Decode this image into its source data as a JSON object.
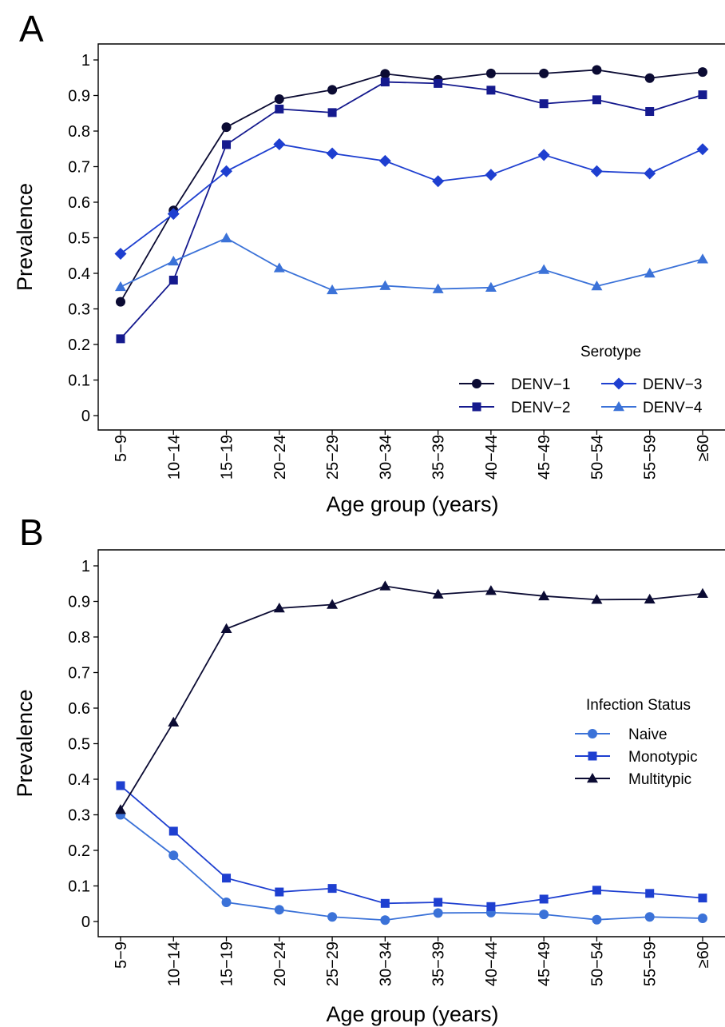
{
  "chart_data": [
    {
      "type": "line",
      "panel_label": "A",
      "xlabel": "Age group (years)",
      "ylabel": "Prevalence",
      "categories": [
        "5−9",
        "10−14",
        "15−19",
        "20−24",
        "25−29",
        "30−34",
        "35−39",
        "40−44",
        "45−49",
        "50−54",
        "55−59",
        "≥60"
      ],
      "ylim": [
        0,
        1
      ],
      "yticks": [
        "0",
        "0.1",
        "0.2",
        "0.3",
        "0.4",
        "0.5",
        "0.6",
        "0.7",
        "0.8",
        "0.9",
        "1"
      ],
      "grid": false,
      "legend": {
        "title": "Serotype",
        "position": "bottom-right",
        "columns": 2
      },
      "series": [
        {
          "name": "DENV−1",
          "color": "#0b0b33",
          "marker": "circle",
          "values": [
            0.32,
            0.577,
            0.811,
            0.89,
            0.916,
            0.961,
            0.944,
            0.962,
            0.962,
            0.972,
            0.949,
            0.966
          ]
        },
        {
          "name": "DENV−2",
          "color": "#151a8e",
          "marker": "square",
          "values": [
            0.216,
            0.381,
            0.762,
            0.862,
            0.852,
            0.938,
            0.934,
            0.915,
            0.877,
            0.888,
            0.855,
            0.902
          ]
        },
        {
          "name": "DENV−3",
          "color": "#1e3fd0",
          "marker": "diamond",
          "values": [
            0.455,
            0.567,
            0.687,
            0.763,
            0.737,
            0.716,
            0.659,
            0.677,
            0.733,
            0.687,
            0.681,
            0.749
          ]
        },
        {
          "name": "DENV−4",
          "color": "#3b72d8",
          "marker": "triangle",
          "values": [
            0.362,
            0.434,
            0.499,
            0.415,
            0.353,
            0.365,
            0.356,
            0.36,
            0.41,
            0.364,
            0.4,
            0.44
          ]
        }
      ]
    },
    {
      "type": "line",
      "panel_label": "B",
      "xlabel": "Age group (years)",
      "ylabel": "Prevalence",
      "categories": [
        "5−9",
        "10−14",
        "15−19",
        "20−24",
        "25−29",
        "30−34",
        "35−39",
        "40−44",
        "45−49",
        "50−54",
        "55−59",
        "≥60"
      ],
      "ylim": [
        0,
        1
      ],
      "yticks": [
        "0",
        "0.1",
        "0.2",
        "0.3",
        "0.4",
        "0.5",
        "0.6",
        "0.7",
        "0.8",
        "0.9",
        "1"
      ],
      "grid": false,
      "legend": {
        "title": "Infection Status",
        "position": "right",
        "columns": 1
      },
      "series": [
        {
          "name": "Naive",
          "color": "#3b72d8",
          "marker": "circle",
          "values": [
            0.3,
            0.186,
            0.054,
            0.033,
            0.013,
            0.004,
            0.024,
            0.025,
            0.02,
            0.005,
            0.013,
            0.009
          ]
        },
        {
          "name": "Monotypic",
          "color": "#1e3fd0",
          "marker": "square",
          "values": [
            0.382,
            0.254,
            0.122,
            0.083,
            0.093,
            0.051,
            0.054,
            0.042,
            0.063,
            0.088,
            0.079,
            0.066
          ]
        },
        {
          "name": "Multitypic",
          "color": "#0b0b33",
          "marker": "triangle",
          "values": [
            0.314,
            0.56,
            0.823,
            0.881,
            0.891,
            0.943,
            0.92,
            0.93,
            0.915,
            0.905,
            0.906,
            0.922
          ]
        }
      ]
    }
  ]
}
